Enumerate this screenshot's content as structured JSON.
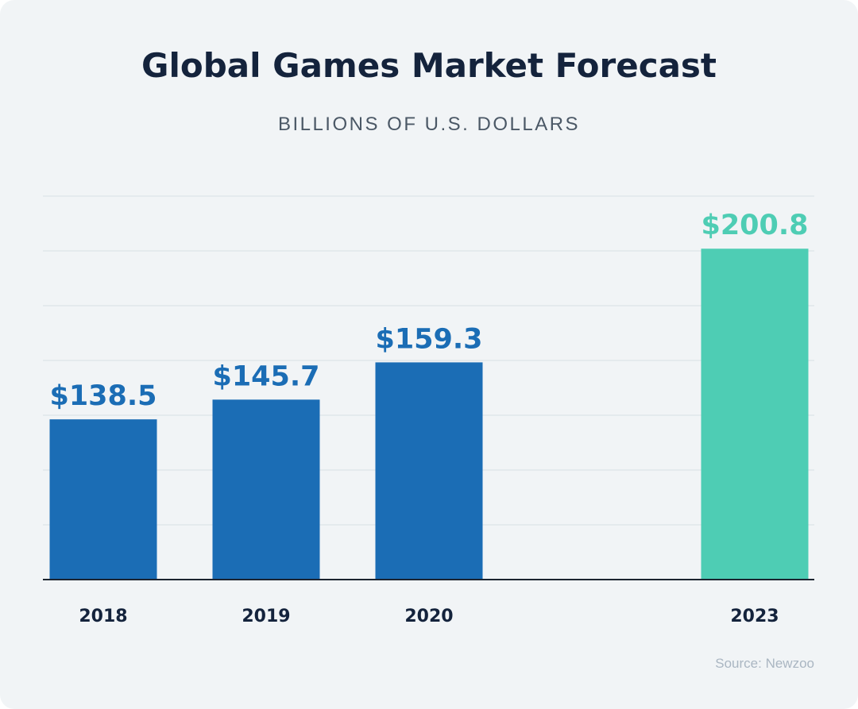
{
  "title": "Global Games Market Forecast",
  "subtitle": "BILLIONS OF U.S. DOLLARS",
  "source": "Source: Newzoo",
  "colors": {
    "actual_bar": "#1b6db5",
    "forecast_bar": "#4ecdb4",
    "title": "#14233c",
    "gridline": "#dde3e8",
    "baseline": "#1c2430"
  },
  "chart_data": {
    "type": "bar",
    "title": "Global Games Market Forecast",
    "subtitle": "BILLIONS OF U.S. DOLLARS",
    "categories": [
      "2018",
      "2019",
      "2020",
      "2023"
    ],
    "values": [
      138.5,
      145.7,
      159.3,
      200.8
    ],
    "labels": [
      "$138.5",
      "$145.7",
      "$159.3",
      "$200.8"
    ],
    "highlight": [
      false,
      false,
      false,
      true
    ],
    "ylim": [
      80,
      220
    ],
    "grid": true,
    "gridlines": 7,
    "legend": "none",
    "xlabel": "",
    "ylabel": ""
  }
}
